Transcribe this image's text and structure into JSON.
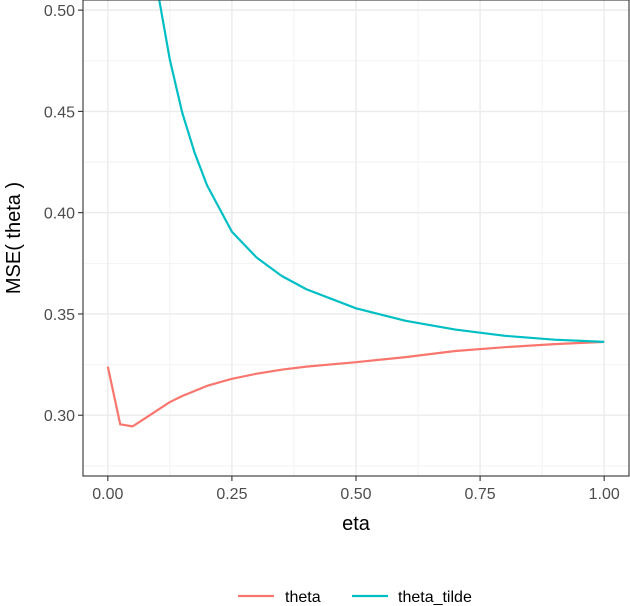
{
  "chart_data": {
    "type": "line",
    "xlabel": "eta",
    "ylabel": "MSE( theta )",
    "xlim": [
      -0.05,
      1.05
    ],
    "ylim": [
      0.27,
      0.505
    ],
    "x_ticks": [
      0.0,
      0.25,
      0.5,
      0.75,
      1.0
    ],
    "x_tick_labels": [
      "0.00",
      "0.25",
      "0.50",
      "0.75",
      "1.00"
    ],
    "y_ticks": [
      0.3,
      0.35,
      0.4,
      0.45,
      0.5
    ],
    "y_tick_labels": [
      "0.30",
      "0.35",
      "0.40",
      "0.45",
      "0.50"
    ],
    "grid": true,
    "legend_position": "bottom",
    "series": [
      {
        "name": "theta",
        "color": "#F8766D",
        "x": [
          0.0,
          0.025,
          0.05,
          0.075,
          0.1,
          0.125,
          0.15,
          0.2,
          0.25,
          0.3,
          0.35,
          0.4,
          0.5,
          0.6,
          0.7,
          0.8,
          0.9,
          1.0
        ],
        "y": [
          0.324,
          0.2955,
          0.2945,
          0.2985,
          0.3025,
          0.3065,
          0.3095,
          0.3145,
          0.318,
          0.3205,
          0.3225,
          0.324,
          0.3262,
          0.3287,
          0.3317,
          0.3336,
          0.3351,
          0.3362
        ]
      },
      {
        "name": "theta_tilde",
        "color": "#00BFC4",
        "x": [
          0.1,
          0.125,
          0.15,
          0.175,
          0.2,
          0.25,
          0.3,
          0.35,
          0.4,
          0.5,
          0.6,
          0.7,
          0.8,
          0.9,
          1.0
        ],
        "y": [
          0.51,
          0.4755,
          0.4493,
          0.4295,
          0.4135,
          0.3906,
          0.3778,
          0.3688,
          0.3622,
          0.3528,
          0.3466,
          0.3423,
          0.3392,
          0.3373,
          0.3362
        ]
      }
    ]
  }
}
